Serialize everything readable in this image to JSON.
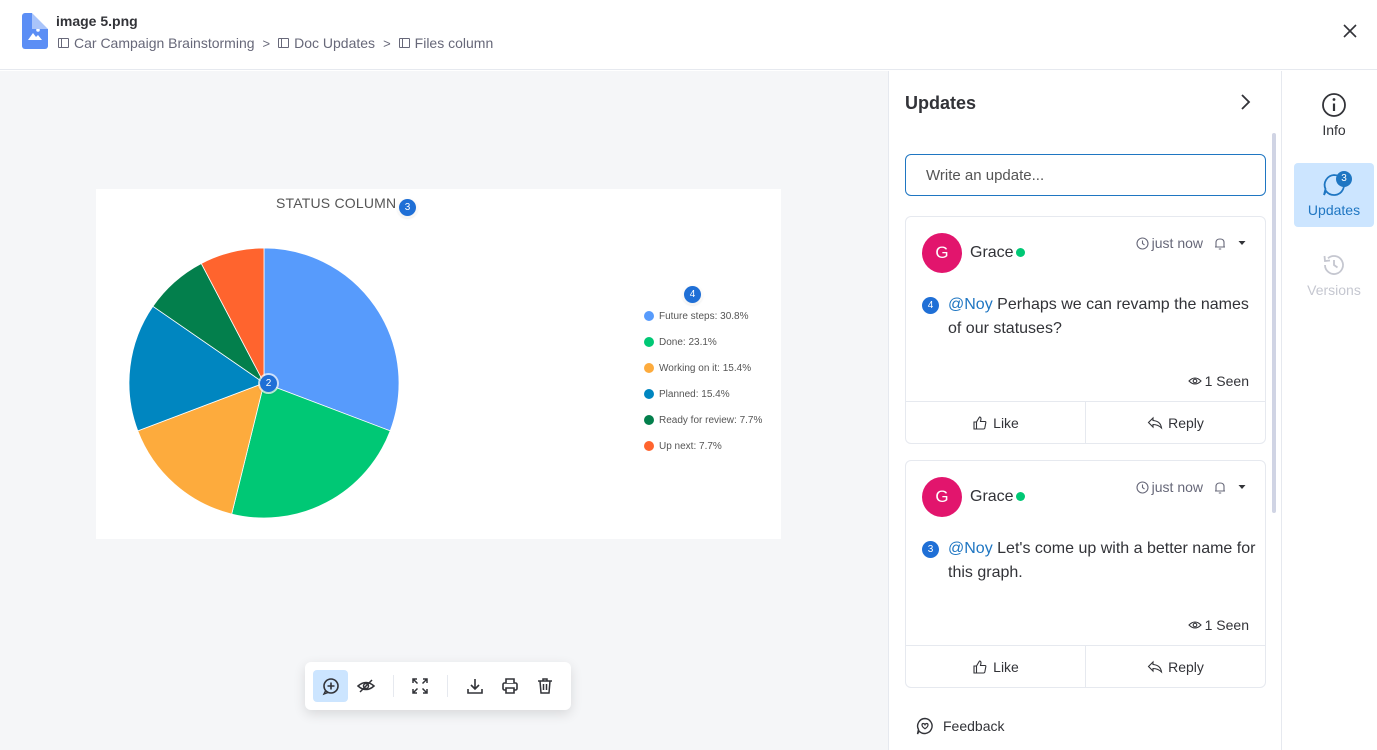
{
  "header": {
    "file_name": "image 5.png",
    "breadcrumb": [
      "Car Campaign Brainstorming",
      "Doc Updates",
      "Files column"
    ]
  },
  "viewer": {
    "pins": [
      "3",
      "4",
      "2"
    ],
    "toolbar": {
      "items": [
        "add-comment-icon",
        "hide-icon",
        "fullscreen-icon",
        "download-icon",
        "print-icon",
        "delete-icon"
      ]
    }
  },
  "chart_data": {
    "type": "pie",
    "title": "STATUS COLUMN",
    "legend_position": "right",
    "slices": [
      {
        "label": "Future steps: 30.8%",
        "value": 30.8,
        "color": "#579bfc"
      },
      {
        "label": "Done: 23.1%",
        "value": 23.1,
        "color": "#00c875"
      },
      {
        "label": "Working on it: 15.4%",
        "value": 15.4,
        "color": "#fdab3d"
      },
      {
        "label": "Planned: 15.4%",
        "value": 15.4,
        "color": "#0086c0"
      },
      {
        "label": "Ready for review: 7.7%",
        "value": 7.7,
        "color": "#037f4c"
      },
      {
        "label": "Up next: 7.7%",
        "value": 7.7,
        "color": "#ff642e"
      }
    ]
  },
  "updates": {
    "title": "Updates",
    "input_placeholder": "Write an update...",
    "posts": [
      {
        "avatar": "G",
        "author": "Grace",
        "time": "just now",
        "pin": "4",
        "mention": "@Noy",
        "text": " Perhaps we can revamp the names of our statuses?",
        "seen": "1 Seen",
        "like": "Like",
        "reply": "Reply"
      },
      {
        "avatar": "G",
        "author": "Grace",
        "time": "just now",
        "pin": "3",
        "mention": "@Noy",
        "text": " Let's come up with a better name for this graph.",
        "seen": "1 Seen",
        "like": "Like",
        "reply": "Reply"
      }
    ],
    "feedback": "Feedback"
  },
  "rail": {
    "info": "Info",
    "updates": "Updates",
    "updates_badge": "3",
    "versions": "Versions"
  },
  "colors": {
    "accent": "#1f76c2",
    "active_bg": "#cce5ff",
    "avatar": "#e2156d",
    "online": "#00c875"
  }
}
